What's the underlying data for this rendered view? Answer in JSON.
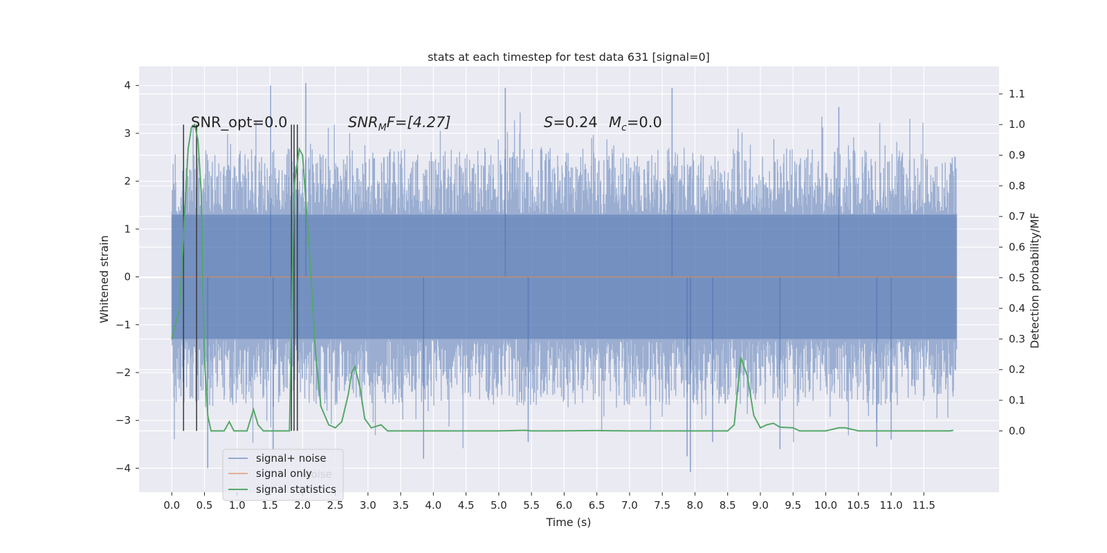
{
  "chart_data": {
    "type": "line",
    "title": "stats at each timestep for test data 631 [signal=0]",
    "xlabel": "Time (s)",
    "ylabel_left": "Whitened strain",
    "ylabel_right": "Detection probability/MF",
    "xlim": [
      -0.5,
      12.65
    ],
    "ylim_left": [
      -4.5,
      4.4
    ],
    "ylim_right": [
      -0.2,
      1.19
    ],
    "x_ticks": [
      0.0,
      0.5,
      1.0,
      1.5,
      2.0,
      2.5,
      3.0,
      3.5,
      4.0,
      4.5,
      5.0,
      5.5,
      6.0,
      6.5,
      7.0,
      7.5,
      8.0,
      8.5,
      9.0,
      9.5,
      10.0,
      10.5,
      11.0,
      11.5
    ],
    "x_tick_labels": [
      "0.0",
      "0.5",
      "1.0",
      "1.5",
      "2.0",
      "2.5",
      "3.0",
      "3.5",
      "4.0",
      "4.5",
      "5.0",
      "5.5",
      "6.0",
      "6.5",
      "7.0",
      "7.5",
      "8.0",
      "8.5",
      "9.0",
      "9.5",
      "10.0",
      "10.5",
      "11.0",
      "11.5"
    ],
    "y_left_ticks": [
      4,
      3,
      2,
      1,
      0,
      -1,
      -2,
      -3,
      -4
    ],
    "y_left_tick_labels": [
      "4",
      "3",
      "2",
      "1",
      "0",
      "−1",
      "−2",
      "−3",
      "−4"
    ],
    "y_right_ticks": [
      1.1,
      1.0,
      0.9,
      0.8,
      0.7,
      0.6,
      0.5,
      0.4,
      0.3,
      0.2,
      0.1,
      0.0
    ],
    "y_right_tick_labels": [
      "1.1",
      "1.0",
      "0.9",
      "0.8",
      "0.7",
      "0.6",
      "0.5",
      "0.4",
      "0.3",
      "0.2",
      "0.1",
      "0.0"
    ],
    "grid": true,
    "legend_position": "lower-left",
    "legend": [
      {
        "label": "signal+ noise",
        "color": "#4c72b0"
      },
      {
        "label": "signal only",
        "color": "#dd8452"
      },
      {
        "label": "signal statistics",
        "color": "#55a868"
      }
    ],
    "legend_ghost_text": "noise",
    "annotations": {
      "snr_opt": "SNR_opt=0.0",
      "snr_mf_prefix": "SNR",
      "snr_mf_sub": "M",
      "snr_mf_suffix": "F=[4.27]",
      "s_var": "S",
      "s_val": "=0.24",
      "mc_var": "M",
      "mc_sub": "c",
      "mc_val": "=0.0"
    },
    "series": [
      {
        "name": "signal+ noise",
        "kind": "noise",
        "color": "#4c72b0",
        "x_range": [
          0.0,
          12.0
        ],
        "envelope_core": [
          -1.3,
          1.3
        ],
        "peak_outliers": [
          [
            1.51,
            4.0
          ],
          [
            2.05,
            4.05
          ],
          [
            5.1,
            3.95
          ],
          [
            7.65,
            3.95
          ],
          [
            10.2,
            3.55
          ],
          [
            1.55,
            -3.6
          ],
          [
            0.55,
            -4.0
          ],
          [
            7.93,
            -4.08
          ],
          [
            7.88,
            -3.75
          ],
          [
            3.85,
            -3.8
          ],
          [
            9.3,
            -3.6
          ],
          [
            5.45,
            -3.45
          ],
          [
            10.78,
            -3.55
          ],
          [
            8.27,
            -3.45
          ],
          [
            11.0,
            -3.4
          ]
        ]
      },
      {
        "name": "signal only",
        "kind": "flat",
        "color": "#dd8452",
        "x": [
          0.0,
          12.0
        ],
        "y": [
          0.0,
          0.0
        ]
      },
      {
        "name": "signal statistics",
        "kind": "line",
        "axis": "right",
        "color": "#55a868",
        "x": [
          0.0,
          0.12,
          0.25,
          0.3,
          0.35,
          0.4,
          0.45,
          0.5,
          0.55,
          0.6,
          0.7,
          0.8,
          0.88,
          0.95,
          1.05,
          1.15,
          1.25,
          1.32,
          1.4,
          1.55,
          1.7,
          1.8,
          1.87,
          1.95,
          2.0,
          2.1,
          2.2,
          2.28,
          2.4,
          2.5,
          2.6,
          2.7,
          2.75,
          2.8,
          2.88,
          2.95,
          3.05,
          3.2,
          3.3,
          3.45,
          3.6,
          3.75,
          4.5,
          5.0,
          5.4,
          5.5,
          5.8,
          6.5,
          7.0,
          8.0,
          8.5,
          8.6,
          8.7,
          8.8,
          8.9,
          9.0,
          9.1,
          9.2,
          9.3,
          9.5,
          9.6,
          10.0,
          10.2,
          10.3,
          10.5,
          11.0,
          11.5,
          11.9,
          11.95
        ],
        "y": [
          0.3,
          0.4,
          0.92,
          0.99,
          1.0,
          0.95,
          0.78,
          0.23,
          0.05,
          0.0,
          0.0,
          0.0,
          0.03,
          0.0,
          0.0,
          0.0,
          0.07,
          0.02,
          0.0,
          0.0,
          0.0,
          0.0,
          0.8,
          0.92,
          0.9,
          0.6,
          0.25,
          0.08,
          0.02,
          0.01,
          0.03,
          0.12,
          0.19,
          0.21,
          0.14,
          0.04,
          0.01,
          0.02,
          0.0,
          0.0,
          0.0,
          0.0,
          0.0,
          0.0,
          0.002,
          0.0,
          0.0,
          0.001,
          0.0,
          0.0,
          0.0,
          0.02,
          0.24,
          0.18,
          0.05,
          0.01,
          0.02,
          0.025,
          0.012,
          0.01,
          0.0,
          0.0,
          0.01,
          0.01,
          0.0,
          0.0,
          0.0,
          0.0,
          0.002
        ]
      }
    ],
    "vertical_markers": {
      "color": "#404040",
      "x": [
        0.18,
        0.38,
        1.83,
        1.87,
        1.92
      ],
      "y_from": 0.0,
      "y_to": 1.0
    }
  }
}
